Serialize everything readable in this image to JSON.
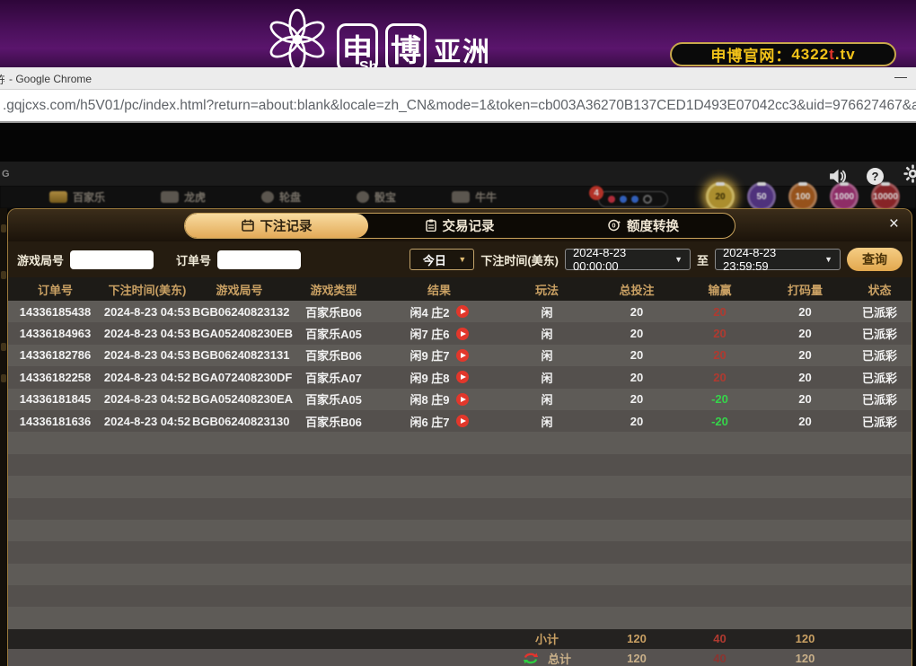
{
  "banner": {
    "logo_char_1": "申",
    "logo_char_2": "博",
    "logo_region": "亚洲",
    "logo_sub": "Sh",
    "official_prefix": "申博官网：",
    "official_number": "4322",
    "official_red": "t",
    "official_suffix": ".tv"
  },
  "chrome": {
    "window_title": "- Google Chrome",
    "minimize_glyph": "—",
    "url": ".gqjcxs.com/h5V01/pc/index.html?return=about:blank&locale=zh_CN&mode=1&token=cb003A36270B137CED1D493E07042cc3&uid=976627467&acc"
  },
  "game_bar": {
    "partial_letter": "G",
    "categories": [
      "百家乐",
      "龙虎",
      "轮盘",
      "骰宝",
      "牛牛"
    ],
    "notification_count": "4",
    "chips": [
      {
        "value": "20",
        "color": "#c8a636",
        "selected": true
      },
      {
        "value": "50",
        "color": "#5d3a91",
        "selected": false
      },
      {
        "value": "100",
        "color": "#b06020",
        "selected": false
      },
      {
        "value": "1000",
        "color": "#a63478",
        "selected": false
      },
      {
        "value": "10000",
        "color": "#9e2a2e",
        "selected": false
      }
    ]
  },
  "modal": {
    "close_glyph": "×",
    "tabs": [
      {
        "label": "下注记录",
        "active": true
      },
      {
        "label": "交易记录",
        "active": false
      },
      {
        "label": "额度转换",
        "active": false
      }
    ],
    "filters": {
      "game_round_label": "游戏局号",
      "order_label": "订单号",
      "range_value": "今日",
      "arrow_glyph": "▼",
      "bet_time_label": "下注时间(美东)",
      "date_from": "2024-8-23 00:00:00",
      "to_label": "至",
      "date_to": "2024-8-23 23:59:59",
      "search_label": "查询"
    },
    "table": {
      "headers": [
        "订单号",
        "下注时间(美东)",
        "游戏局号",
        "游戏类型",
        "结果",
        "玩法",
        "总投注",
        "输赢",
        "打码量",
        "状态"
      ],
      "rows": [
        {
          "order": "14336185438",
          "time": "2024-8-23 04:53",
          "round": "BGB06240823132",
          "type": "百家乐B06",
          "result": "闲4 庄2",
          "play": "闲",
          "bet": "20",
          "win": "20",
          "win_sign": "pos",
          "turnover": "20",
          "status": "已派彩"
        },
        {
          "order": "14336184963",
          "time": "2024-8-23 04:53",
          "round": "BGA052408230EB",
          "type": "百家乐A05",
          "result": "闲7 庄6",
          "play": "闲",
          "bet": "20",
          "win": "20",
          "win_sign": "pos",
          "turnover": "20",
          "status": "已派彩"
        },
        {
          "order": "14336182786",
          "time": "2024-8-23 04:53",
          "round": "BGB06240823131",
          "type": "百家乐B06",
          "result": "闲9 庄7",
          "play": "闲",
          "bet": "20",
          "win": "20",
          "win_sign": "pos",
          "turnover": "20",
          "status": "已派彩"
        },
        {
          "order": "14336182258",
          "time": "2024-8-23 04:52",
          "round": "BGA072408230DF",
          "type": "百家乐A07",
          "result": "闲9 庄8",
          "play": "闲",
          "bet": "20",
          "win": "20",
          "win_sign": "pos",
          "turnover": "20",
          "status": "已派彩"
        },
        {
          "order": "14336181845",
          "time": "2024-8-23 04:52",
          "round": "BGA052408230EA",
          "type": "百家乐A05",
          "result": "闲8 庄9",
          "play": "闲",
          "bet": "20",
          "win": "-20",
          "win_sign": "neg",
          "turnover": "20",
          "status": "已派彩"
        },
        {
          "order": "14336181636",
          "time": "2024-8-23 04:52",
          "round": "BGB06240823130",
          "type": "百家乐B06",
          "result": "闲6 庄7",
          "play": "闲",
          "bet": "20",
          "win": "-20",
          "win_sign": "neg",
          "turnover": "20",
          "status": "已派彩"
        }
      ],
      "empty_rows": 9,
      "subtotal": {
        "label": "小计",
        "bet": "120",
        "win": "40",
        "turnover": "120"
      },
      "total": {
        "label": "总计",
        "bet": "120",
        "win": "40",
        "turnover": "120"
      }
    }
  },
  "colors": {
    "accent_gold": "#c9a063",
    "win_red": "#b03a30",
    "loss_green": "#35d54a",
    "banner_purple": "#4b105c",
    "official_yellow": "#f3c319",
    "official_red": "#e0342a"
  }
}
